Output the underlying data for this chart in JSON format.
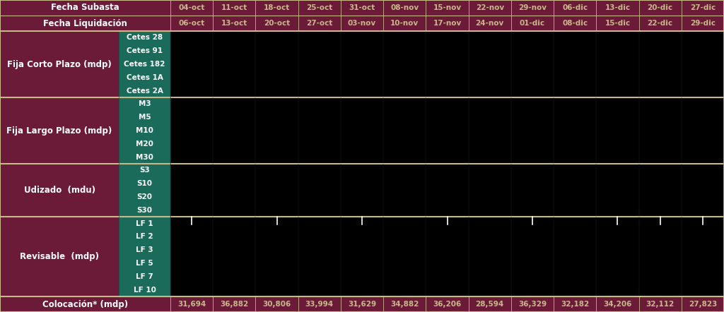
{
  "header_row1": [
    "Fecha Subasta",
    "04-oct",
    "11-oct",
    "18-oct",
    "25-oct",
    "31-oct",
    "08-nov",
    "15-nov",
    "22-nov",
    "29-nov",
    "06-dic",
    "13-dic",
    "20-dic",
    "27-dic"
  ],
  "header_row2": [
    "Fecha Liquidación",
    "06-oct",
    "13-oct",
    "20-oct",
    "27-oct",
    "03-nov",
    "10-nov",
    "17-nov",
    "24-nov",
    "01-dic",
    "08-dic",
    "15-dic",
    "22-dic",
    "29-dic"
  ],
  "sections": [
    {
      "label": "Fija Corto Plazo (mdp)",
      "items": [
        "Cetes 28",
        "Cetes 91",
        "Cetes 182",
        "Cetes 1A",
        "Cetes 2A"
      ],
      "item_bg": "#1a6b5a",
      "separator_after": true
    },
    {
      "label": "Fija Largo Plazo (mdp)",
      "items": [
        "M3",
        "M5",
        "M10",
        "M20",
        "M30"
      ],
      "item_bg": "#1a6b5a",
      "separator_after": true
    },
    {
      "label": "Udizado  (mdu)",
      "items": [
        "S3",
        "S10",
        "S20",
        "S30"
      ],
      "item_bg": "#1a6b5a",
      "separator_after": true
    },
    {
      "label": "Revisable  (mdp)",
      "items": [
        "LF 1",
        "LF 2",
        "LF 3",
        "LF 5",
        "LF 7",
        "LF 10"
      ],
      "item_bg": "#1a6b5a",
      "separator_after": false
    }
  ],
  "footer_label": "Colocación* (mdp)",
  "footer_values": [
    "31,694",
    "36,882",
    "30,806",
    "33,994",
    "31,629",
    "34,882",
    "36,206",
    "28,594",
    "36,329",
    "32,182",
    "34,206",
    "32,112",
    "27,823"
  ],
  "revisable_ticks": [
    0,
    2,
    4,
    6,
    8,
    10,
    11,
    12
  ],
  "header_bg": "#6b1a38",
  "section_label_bg": "#6b1a38",
  "data_cell_bg": "#000000",
  "item_bg": "#1a6b5a",
  "footer_bg": "#6b1a38",
  "separator_color": "#c8b88a",
  "text_color_white": "#ffffff",
  "text_color_gold": "#c8b88a",
  "border_color": "#c8b88a",
  "fig_width": 10.24,
  "fig_height": 4.42
}
